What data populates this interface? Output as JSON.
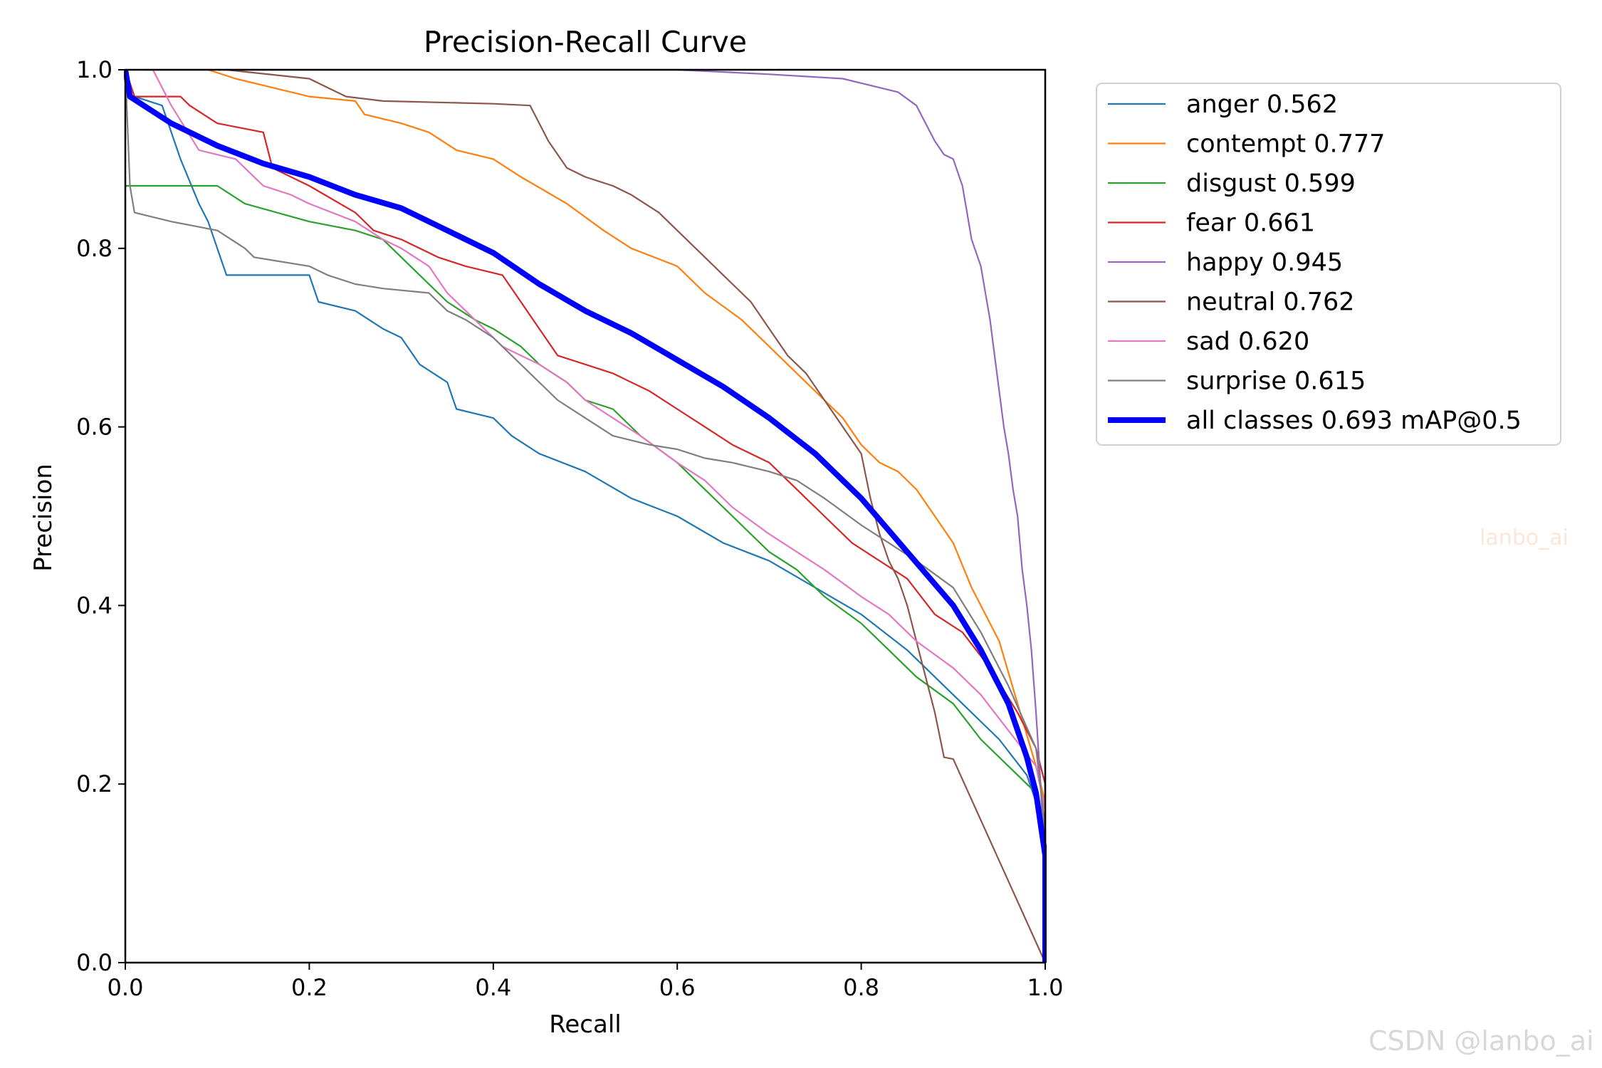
{
  "chart_data": {
    "type": "line",
    "title": "Precision-Recall Curve",
    "xlabel": "Recall",
    "ylabel": "Precision",
    "xlim": [
      0.0,
      1.0
    ],
    "ylim": [
      0.0,
      1.0
    ],
    "xticks": [
      "0.0",
      "0.2",
      "0.4",
      "0.6",
      "0.8",
      "1.0"
    ],
    "yticks": [
      "0.0",
      "0.2",
      "0.4",
      "0.6",
      "0.8",
      "1.0"
    ],
    "grid": false,
    "legend_position": "outside-right-top",
    "series": [
      {
        "name": "anger",
        "label": "anger 0.562",
        "color": "#1f77b4",
        "thick": false,
        "points": [
          [
            0,
            1.0
          ],
          [
            0.01,
            0.97
          ],
          [
            0.04,
            0.96
          ],
          [
            0.06,
            0.9
          ],
          [
            0.08,
            0.85
          ],
          [
            0.09,
            0.83
          ],
          [
            0.1,
            0.8
          ],
          [
            0.11,
            0.77
          ],
          [
            0.15,
            0.77
          ],
          [
            0.2,
            0.77
          ],
          [
            0.21,
            0.74
          ],
          [
            0.25,
            0.73
          ],
          [
            0.28,
            0.71
          ],
          [
            0.3,
            0.7
          ],
          [
            0.32,
            0.67
          ],
          [
            0.35,
            0.65
          ],
          [
            0.36,
            0.62
          ],
          [
            0.4,
            0.61
          ],
          [
            0.42,
            0.59
          ],
          [
            0.45,
            0.57
          ],
          [
            0.5,
            0.55
          ],
          [
            0.55,
            0.52
          ],
          [
            0.6,
            0.5
          ],
          [
            0.65,
            0.47
          ],
          [
            0.7,
            0.45
          ],
          [
            0.75,
            0.42
          ],
          [
            0.8,
            0.39
          ],
          [
            0.85,
            0.35
          ],
          [
            0.9,
            0.3
          ],
          [
            0.95,
            0.25
          ],
          [
            0.98,
            0.21
          ],
          [
            1.0,
            0.15
          ],
          [
            1.0,
            0.0
          ]
        ]
      },
      {
        "name": "contempt",
        "label": "contempt 0.777",
        "color": "#ff7f0e",
        "thick": false,
        "points": [
          [
            0.09,
            1.0
          ],
          [
            0.12,
            0.99
          ],
          [
            0.2,
            0.97
          ],
          [
            0.25,
            0.965
          ],
          [
            0.26,
            0.95
          ],
          [
            0.3,
            0.94
          ],
          [
            0.33,
            0.93
          ],
          [
            0.36,
            0.91
          ],
          [
            0.4,
            0.9
          ],
          [
            0.43,
            0.88
          ],
          [
            0.48,
            0.85
          ],
          [
            0.52,
            0.82
          ],
          [
            0.55,
            0.8
          ],
          [
            0.6,
            0.78
          ],
          [
            0.63,
            0.75
          ],
          [
            0.67,
            0.72
          ],
          [
            0.7,
            0.69
          ],
          [
            0.73,
            0.66
          ],
          [
            0.76,
            0.63
          ],
          [
            0.78,
            0.61
          ],
          [
            0.8,
            0.58
          ],
          [
            0.82,
            0.56
          ],
          [
            0.84,
            0.55
          ],
          [
            0.86,
            0.53
          ],
          [
            0.88,
            0.5
          ],
          [
            0.9,
            0.47
          ],
          [
            0.92,
            0.42
          ],
          [
            0.95,
            0.36
          ],
          [
            0.97,
            0.29
          ],
          [
            0.99,
            0.22
          ],
          [
            1.0,
            0.18
          ],
          [
            1.0,
            0.0
          ]
        ]
      },
      {
        "name": "disgust",
        "label": "disgust 0.599",
        "color": "#2ca02c",
        "thick": false,
        "points": [
          [
            0,
            0.87
          ],
          [
            0.1,
            0.87
          ],
          [
            0.13,
            0.85
          ],
          [
            0.2,
            0.83
          ],
          [
            0.25,
            0.82
          ],
          [
            0.28,
            0.81
          ],
          [
            0.3,
            0.79
          ],
          [
            0.32,
            0.77
          ],
          [
            0.35,
            0.74
          ],
          [
            0.38,
            0.72
          ],
          [
            0.4,
            0.71
          ],
          [
            0.43,
            0.69
          ],
          [
            0.45,
            0.67
          ],
          [
            0.48,
            0.65
          ],
          [
            0.5,
            0.63
          ],
          [
            0.53,
            0.62
          ],
          [
            0.56,
            0.59
          ],
          [
            0.6,
            0.56
          ],
          [
            0.63,
            0.53
          ],
          [
            0.66,
            0.5
          ],
          [
            0.7,
            0.46
          ],
          [
            0.73,
            0.44
          ],
          [
            0.76,
            0.41
          ],
          [
            0.8,
            0.38
          ],
          [
            0.83,
            0.35
          ],
          [
            0.86,
            0.32
          ],
          [
            0.9,
            0.29
          ],
          [
            0.93,
            0.25
          ],
          [
            0.96,
            0.22
          ],
          [
            0.99,
            0.19
          ],
          [
            1.0,
            0.15
          ],
          [
            1.0,
            0.0
          ]
        ]
      },
      {
        "name": "fear",
        "label": "fear 0.661",
        "color": "#d62728",
        "thick": false,
        "points": [
          [
            0,
            1.0
          ],
          [
            0.01,
            0.97
          ],
          [
            0.06,
            0.97
          ],
          [
            0.07,
            0.96
          ],
          [
            0.1,
            0.94
          ],
          [
            0.15,
            0.93
          ],
          [
            0.16,
            0.89
          ],
          [
            0.2,
            0.87
          ],
          [
            0.25,
            0.84
          ],
          [
            0.27,
            0.82
          ],
          [
            0.3,
            0.81
          ],
          [
            0.34,
            0.79
          ],
          [
            0.37,
            0.78
          ],
          [
            0.41,
            0.77
          ],
          [
            0.43,
            0.74
          ],
          [
            0.45,
            0.71
          ],
          [
            0.47,
            0.68
          ],
          [
            0.5,
            0.67
          ],
          [
            0.53,
            0.66
          ],
          [
            0.57,
            0.64
          ],
          [
            0.6,
            0.62
          ],
          [
            0.63,
            0.6
          ],
          [
            0.66,
            0.58
          ],
          [
            0.7,
            0.56
          ],
          [
            0.73,
            0.53
          ],
          [
            0.76,
            0.5
          ],
          [
            0.79,
            0.47
          ],
          [
            0.82,
            0.45
          ],
          [
            0.85,
            0.43
          ],
          [
            0.88,
            0.39
          ],
          [
            0.91,
            0.37
          ],
          [
            0.94,
            0.33
          ],
          [
            0.97,
            0.28
          ],
          [
            0.99,
            0.24
          ],
          [
            1.0,
            0.2
          ],
          [
            1.0,
            0.0
          ]
        ]
      },
      {
        "name": "happy",
        "label": "happy 0.945",
        "color": "#9467bd",
        "thick": false,
        "points": [
          [
            0.02,
            1.0
          ],
          [
            0.25,
            1.0
          ],
          [
            0.6,
            1.0
          ],
          [
            0.7,
            0.995
          ],
          [
            0.78,
            0.99
          ],
          [
            0.8,
            0.985
          ],
          [
            0.84,
            0.975
          ],
          [
            0.86,
            0.96
          ],
          [
            0.87,
            0.94
          ],
          [
            0.88,
            0.92
          ],
          [
            0.89,
            0.905
          ],
          [
            0.9,
            0.9
          ],
          [
            0.91,
            0.87
          ],
          [
            0.915,
            0.84
          ],
          [
            0.92,
            0.81
          ],
          [
            0.93,
            0.78
          ],
          [
            0.935,
            0.75
          ],
          [
            0.94,
            0.72
          ],
          [
            0.945,
            0.68
          ],
          [
            0.95,
            0.64
          ],
          [
            0.955,
            0.6
          ],
          [
            0.96,
            0.57
          ],
          [
            0.965,
            0.53
          ],
          [
            0.97,
            0.5
          ],
          [
            0.975,
            0.44
          ],
          [
            0.98,
            0.4
          ],
          [
            0.985,
            0.35
          ],
          [
            0.99,
            0.28
          ],
          [
            0.995,
            0.2
          ],
          [
            1.0,
            0.1
          ],
          [
            1.0,
            0.0
          ]
        ]
      },
      {
        "name": "neutral",
        "label": "neutral 0.762",
        "color": "#8c564b",
        "thick": false,
        "points": [
          [
            0.11,
            1.0
          ],
          [
            0.2,
            0.99
          ],
          [
            0.22,
            0.98
          ],
          [
            0.24,
            0.97
          ],
          [
            0.28,
            0.965
          ],
          [
            0.4,
            0.962
          ],
          [
            0.44,
            0.96
          ],
          [
            0.46,
            0.92
          ],
          [
            0.48,
            0.89
          ],
          [
            0.5,
            0.88
          ],
          [
            0.53,
            0.87
          ],
          [
            0.55,
            0.86
          ],
          [
            0.58,
            0.84
          ],
          [
            0.6,
            0.82
          ],
          [
            0.63,
            0.79
          ],
          [
            0.65,
            0.77
          ],
          [
            0.68,
            0.74
          ],
          [
            0.7,
            0.71
          ],
          [
            0.72,
            0.68
          ],
          [
            0.74,
            0.66
          ],
          [
            0.76,
            0.63
          ],
          [
            0.78,
            0.6
          ],
          [
            0.8,
            0.57
          ],
          [
            0.81,
            0.52
          ],
          [
            0.82,
            0.48
          ],
          [
            0.83,
            0.45
          ],
          [
            0.84,
            0.43
          ],
          [
            0.85,
            0.4
          ],
          [
            0.86,
            0.36
          ],
          [
            0.87,
            0.32
          ],
          [
            0.88,
            0.28
          ],
          [
            0.89,
            0.23
          ],
          [
            0.9,
            0.228
          ],
          [
            1.0,
            0.0
          ]
        ]
      },
      {
        "name": "sad",
        "label": "sad 0.620",
        "color": "#e377c2",
        "thick": false,
        "points": [
          [
            0.03,
            1.0
          ],
          [
            0.05,
            0.96
          ],
          [
            0.08,
            0.91
          ],
          [
            0.12,
            0.9
          ],
          [
            0.15,
            0.87
          ],
          [
            0.18,
            0.86
          ],
          [
            0.2,
            0.85
          ],
          [
            0.25,
            0.83
          ],
          [
            0.28,
            0.81
          ],
          [
            0.3,
            0.8
          ],
          [
            0.33,
            0.78
          ],
          [
            0.35,
            0.75
          ],
          [
            0.38,
            0.72
          ],
          [
            0.41,
            0.69
          ],
          [
            0.45,
            0.67
          ],
          [
            0.48,
            0.65
          ],
          [
            0.5,
            0.63
          ],
          [
            0.53,
            0.61
          ],
          [
            0.56,
            0.59
          ],
          [
            0.6,
            0.56
          ],
          [
            0.63,
            0.54
          ],
          [
            0.66,
            0.51
          ],
          [
            0.7,
            0.48
          ],
          [
            0.73,
            0.46
          ],
          [
            0.76,
            0.44
          ],
          [
            0.8,
            0.41
          ],
          [
            0.83,
            0.39
          ],
          [
            0.86,
            0.36
          ],
          [
            0.9,
            0.33
          ],
          [
            0.93,
            0.3
          ],
          [
            0.96,
            0.26
          ],
          [
            0.99,
            0.22
          ],
          [
            1.0,
            0.17
          ],
          [
            1.0,
            0.0
          ]
        ]
      },
      {
        "name": "surprise",
        "label": "surprise 0.615",
        "color": "#7f7f7f",
        "thick": false,
        "points": [
          [
            0,
            1.0
          ],
          [
            0.005,
            0.87
          ],
          [
            0.01,
            0.84
          ],
          [
            0.05,
            0.83
          ],
          [
            0.1,
            0.82
          ],
          [
            0.13,
            0.8
          ],
          [
            0.14,
            0.79
          ],
          [
            0.2,
            0.78
          ],
          [
            0.22,
            0.77
          ],
          [
            0.25,
            0.76
          ],
          [
            0.28,
            0.755
          ],
          [
            0.33,
            0.75
          ],
          [
            0.35,
            0.73
          ],
          [
            0.37,
            0.72
          ],
          [
            0.4,
            0.7
          ],
          [
            0.42,
            0.68
          ],
          [
            0.45,
            0.65
          ],
          [
            0.47,
            0.63
          ],
          [
            0.5,
            0.61
          ],
          [
            0.53,
            0.59
          ],
          [
            0.57,
            0.58
          ],
          [
            0.6,
            0.575
          ],
          [
            0.63,
            0.565
          ],
          [
            0.66,
            0.56
          ],
          [
            0.7,
            0.55
          ],
          [
            0.73,
            0.54
          ],
          [
            0.76,
            0.52
          ],
          [
            0.8,
            0.49
          ],
          [
            0.83,
            0.47
          ],
          [
            0.86,
            0.45
          ],
          [
            0.9,
            0.42
          ],
          [
            0.93,
            0.37
          ],
          [
            0.96,
            0.31
          ],
          [
            0.99,
            0.24
          ],
          [
            1.0,
            0.15
          ],
          [
            1.0,
            0.0
          ]
        ]
      },
      {
        "name": "all classes",
        "label": "all classes 0.693 mAP@0.5",
        "color": "#0000ff",
        "thick": true,
        "points": [
          [
            0,
            1.0
          ],
          [
            0.005,
            0.97
          ],
          [
            0.02,
            0.96
          ],
          [
            0.05,
            0.94
          ],
          [
            0.1,
            0.915
          ],
          [
            0.15,
            0.895
          ],
          [
            0.2,
            0.88
          ],
          [
            0.25,
            0.86
          ],
          [
            0.3,
            0.845
          ],
          [
            0.35,
            0.82
          ],
          [
            0.4,
            0.795
          ],
          [
            0.45,
            0.76
          ],
          [
            0.5,
            0.73
          ],
          [
            0.55,
            0.705
          ],
          [
            0.6,
            0.675
          ],
          [
            0.65,
            0.645
          ],
          [
            0.7,
            0.61
          ],
          [
            0.75,
            0.57
          ],
          [
            0.8,
            0.52
          ],
          [
            0.85,
            0.46
          ],
          [
            0.9,
            0.4
          ],
          [
            0.93,
            0.35
          ],
          [
            0.96,
            0.29
          ],
          [
            0.98,
            0.23
          ],
          [
            0.99,
            0.19
          ],
          [
            1.0,
            0.12
          ],
          [
            1.0,
            0.0
          ]
        ]
      }
    ]
  },
  "watermarks": {
    "center": "lanbo_ai",
    "corner": "CSDN @lanbo_ai"
  }
}
